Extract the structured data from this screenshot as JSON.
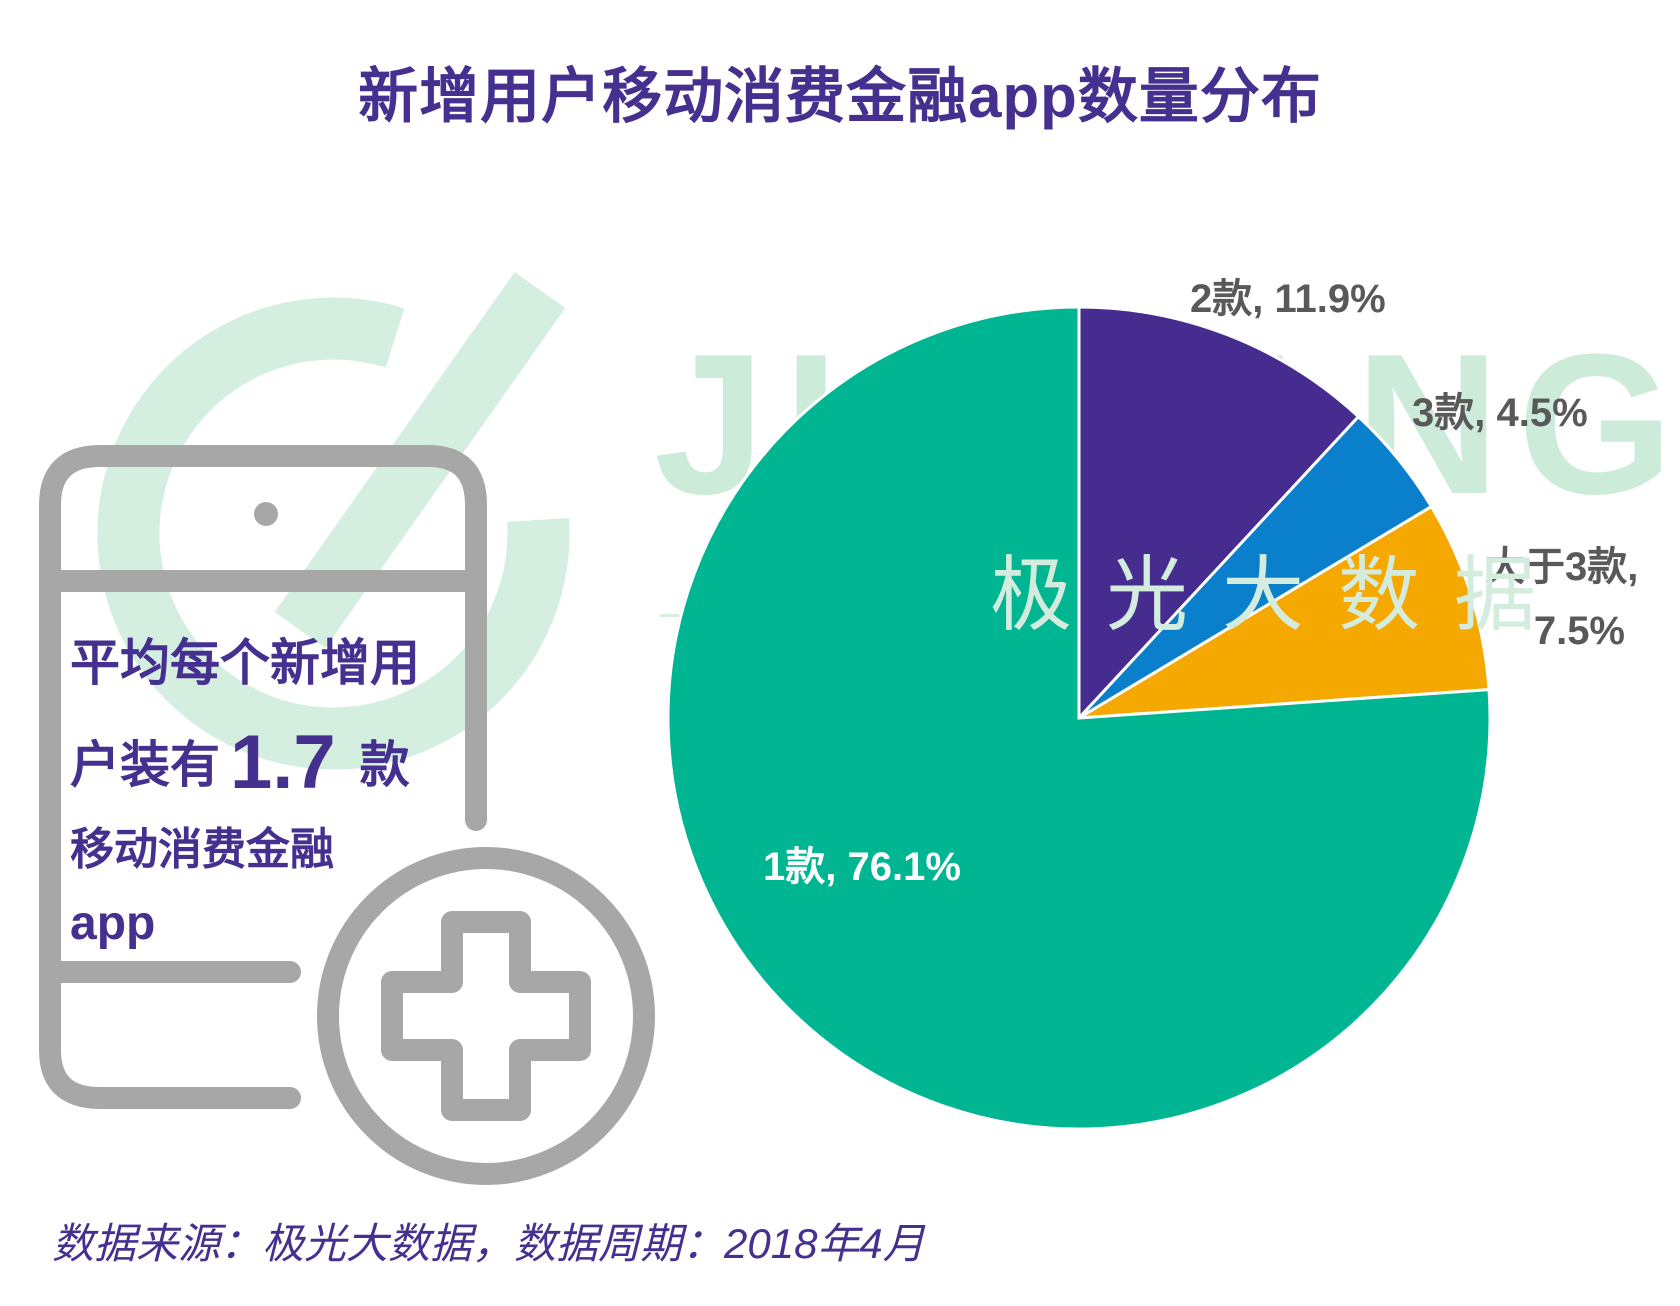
{
  "title": "新增用户移动消费金融app数量分布",
  "watermark": {
    "letters": "JIGUANG",
    "chinese": "极光大数据"
  },
  "callout": {
    "line1": "平均每个新增用",
    "line2_prefix": "户装有",
    "value": "1.7",
    "unit": "款",
    "line3": "移动消费金融",
    "line4": "app"
  },
  "source": "数据来源：极光大数据，数据周期：2018年4月",
  "colors": {
    "title": "#45308f",
    "one": "#00b591",
    "two": "#462c8f",
    "three": "#0a80cc",
    "more": "#f5a800",
    "label_gray": "#595959"
  },
  "chart_data": {
    "type": "pie",
    "title": "新增用户移动消费金融app数量分布",
    "start": "12 o'clock, clockwise",
    "slices": [
      {
        "category": "2款",
        "value": 11.9,
        "label": "2款, 11.9%",
        "color": "#462c8f"
      },
      {
        "category": "3款",
        "value": 4.5,
        "label": "3款, 4.5%",
        "color": "#0a80cc"
      },
      {
        "category": "大于3款",
        "value": 7.5,
        "label_line1": "大于3款,",
        "label_line2": "7.5%",
        "color": "#f5a800"
      },
      {
        "category": "1款",
        "value": 76.1,
        "label": "1款, 76.1%",
        "color": "#00b591"
      }
    ]
  }
}
